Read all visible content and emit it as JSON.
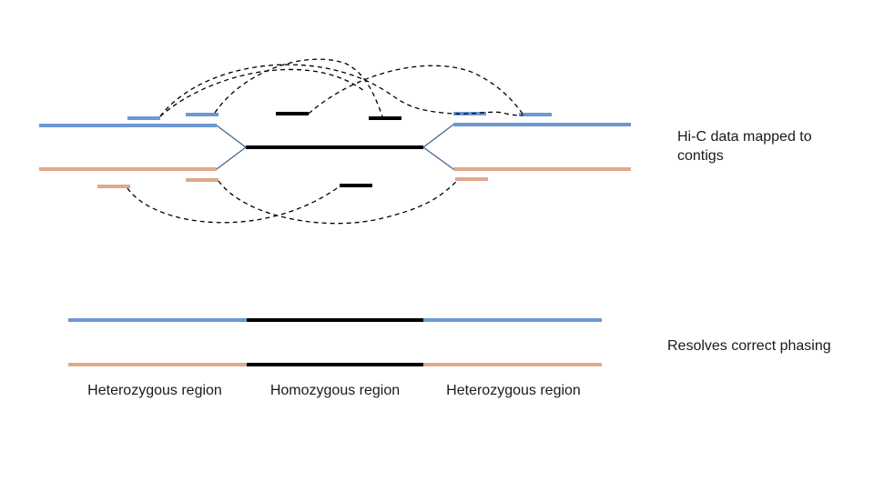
{
  "labels": {
    "hic_mapping": "Hi-C data mapped to contigs",
    "phasing": "Resolves correct phasing"
  },
  "regions": {
    "left": "Heterozygous region",
    "middle": "Homozygous region",
    "right": "Heterozygous region"
  },
  "colors": {
    "haplotype_1": "#6d98d2",
    "haplotype_2": "#e0a98a",
    "homozygous": "#000000",
    "hic_link": "#000000",
    "junction": "#3e5f86"
  }
}
